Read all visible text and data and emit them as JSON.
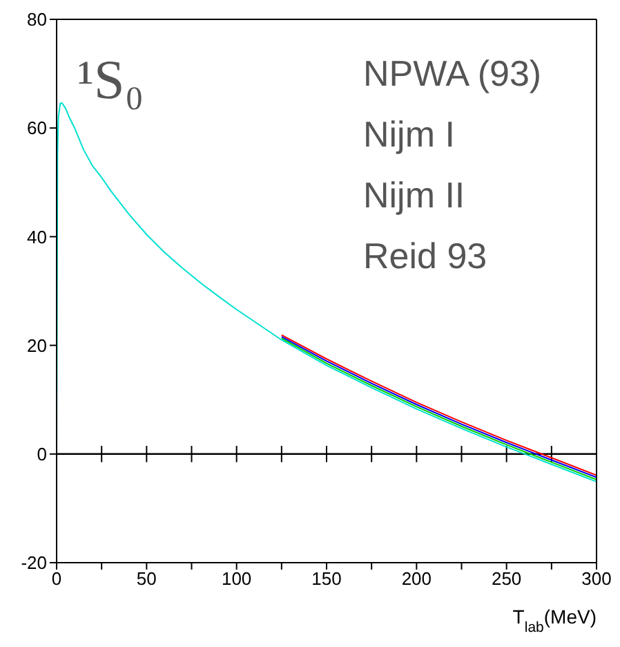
{
  "chart_data": {
    "type": "line",
    "xlabel": "T$_{lab}$(MeV)",
    "x": [
      0,
      0.1,
      0.5,
      1,
      2,
      3,
      5,
      7,
      10,
      15,
      20,
      25,
      30,
      40,
      50,
      60,
      70,
      80,
      90,
      100,
      125,
      150,
      175,
      200,
      225,
      250,
      275,
      300
    ],
    "series": [
      {
        "color": "#ff0000",
        "values": [
          null,
          null,
          null,
          null,
          null,
          null,
          null,
          null,
          null,
          null,
          null,
          null,
          null,
          null,
          null,
          null,
          null,
          null,
          null,
          null,
          21.9,
          17.5,
          13.4,
          9.5,
          5.9,
          2.5,
          -0.7,
          -3.9
        ]
      },
      {
        "color": "#0000ff",
        "values": [
          null,
          null,
          null,
          null,
          null,
          null,
          null,
          null,
          null,
          null,
          null,
          null,
          null,
          null,
          null,
          null,
          null,
          null,
          null,
          null,
          21.6,
          17.1,
          13.0,
          9.1,
          5.5,
          2.1,
          -1.1,
          -4.3
        ]
      },
      {
        "color": "#00cc00",
        "values": [
          null,
          null,
          null,
          null,
          null,
          null,
          null,
          null,
          null,
          null,
          null,
          null,
          null,
          null,
          null,
          null,
          null,
          null,
          null,
          null,
          21.3,
          16.7,
          12.6,
          8.7,
          5.1,
          1.7,
          -1.5,
          -4.7
        ]
      },
      {
        "color": "#00e0d0",
        "values": [
          0,
          null,
          55,
          62,
          64.5,
          64.6,
          63.6,
          62,
          60,
          56,
          53,
          50.9,
          48.5,
          44.2,
          40.4,
          37.1,
          34.2,
          31.5,
          29.0,
          26.6,
          21.0,
          16.3,
          12.2,
          8.3,
          4.7,
          1.3,
          -1.9,
          -5.1
        ]
      }
    ],
    "xlim": [
      0,
      300
    ],
    "xticks": [
      0,
      {
        "value": 25,
        "label": null
      },
      50,
      {
        "value": 75,
        "label": null
      },
      100,
      {
        "value": 125,
        "label": null
      },
      150,
      {
        "value": 175,
        "label": null
      },
      200,
      {
        "value": 225,
        "label": null
      },
      250,
      {
        "value": 275,
        "label": null
      },
      300
    ],
    "ylim": [
      -20,
      80
    ],
    "yticks": [
      -20,
      0,
      20,
      40,
      60,
      80
    ],
    "ref_lines": [
      {
        "axis": "y",
        "value": 0,
        "color": "#000000"
      }
    ],
    "marker": "none",
    "line_style": "solid",
    "grid": false,
    "legend": false,
    "annotations": [
      "¹S₀",
      "NPWA (93)",
      "Nijm I",
      "Nijm II",
      "Reid 93"
    ]
  }
}
